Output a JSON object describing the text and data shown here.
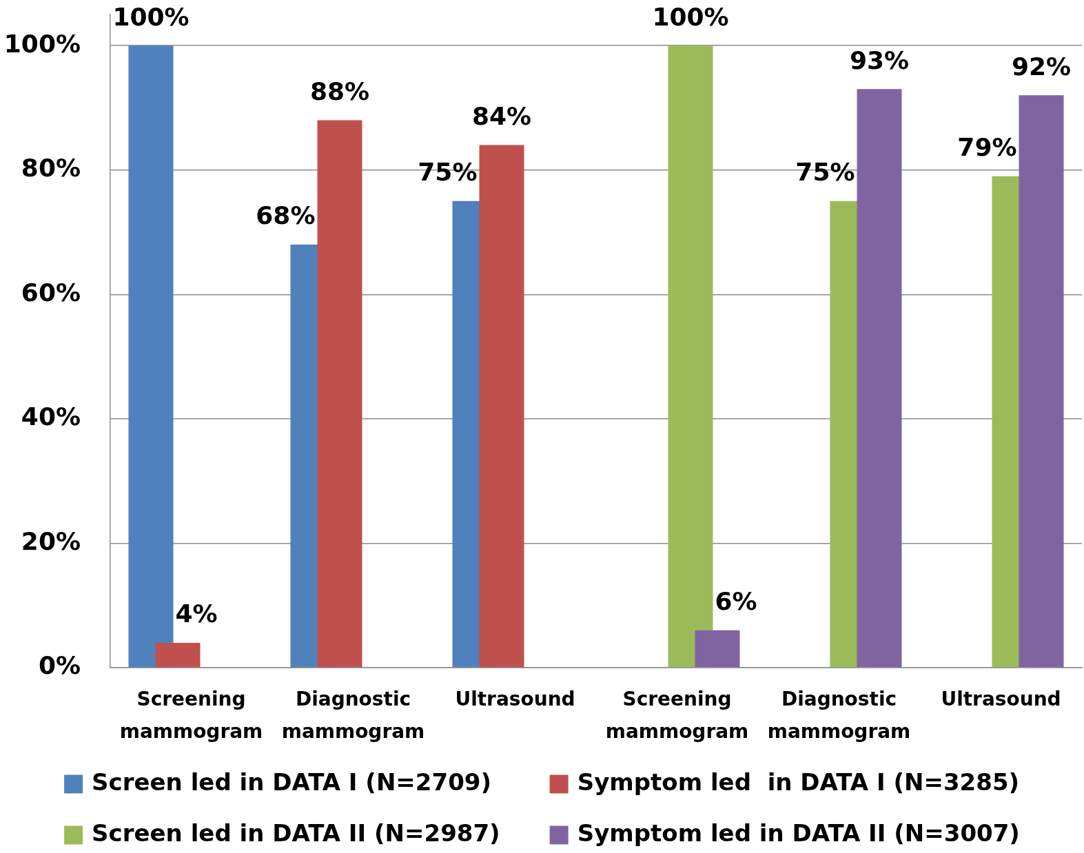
{
  "chart_data": {
    "type": "bar",
    "categories": [
      "Screening mammogram",
      "Diagnostic mammogram",
      "Ultrasound",
      "Screening mammogram",
      "Diagnostic mammogram",
      "Ultrasound"
    ],
    "series": [
      {
        "name": "Screen led in DATA I (N=2709)",
        "color": "#4f81bd",
        "values": [
          100,
          68,
          75,
          null,
          null,
          null
        ],
        "value_labels": [
          "100%",
          "68%",
          "75%",
          null,
          null,
          null
        ]
      },
      {
        "name": "Symptom led  in DATA I (N=3285)",
        "color": "#c0504d",
        "values": [
          4,
          88,
          84,
          null,
          null,
          null
        ],
        "value_labels": [
          "4%",
          "88%",
          "84%",
          null,
          null,
          null
        ]
      },
      {
        "name": "Screen led in DATA II (N=2987)",
        "color": "#9bbb59",
        "values": [
          null,
          null,
          null,
          100,
          75,
          79
        ],
        "value_labels": [
          null,
          null,
          null,
          "100%",
          "75%",
          "79%"
        ]
      },
      {
        "name": "Symptom led in DATA II (N=3007)",
        "color": "#8064a2",
        "values": [
          null,
          null,
          null,
          6,
          93,
          92
        ],
        "value_labels": [
          null,
          null,
          null,
          "6%",
          "93%",
          "92%"
        ]
      }
    ],
    "ylim": [
      0,
      105
    ],
    "yticks": [
      {
        "value": 0,
        "label": "0%"
      },
      {
        "value": 20,
        "label": "20%"
      },
      {
        "value": 40,
        "label": "40%"
      },
      {
        "value": 60,
        "label": "60%"
      },
      {
        "value": 80,
        "label": "80%"
      },
      {
        "value": 100,
        "label": "100%"
      }
    ],
    "grid": "y",
    "legend": "bottom"
  }
}
